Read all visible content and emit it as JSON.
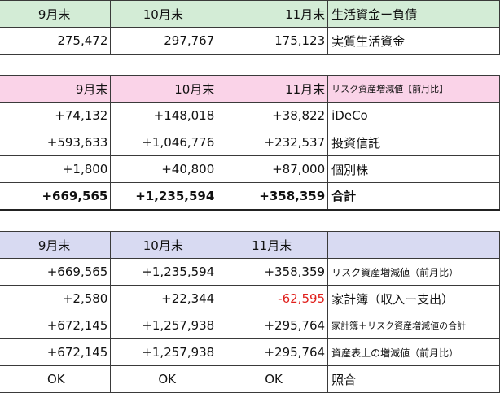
{
  "table1": {
    "header": [
      "9月末",
      "10月末",
      "11月末",
      "生活資金ー負債"
    ],
    "row": [
      "275,472",
      "297,767",
      "175,123",
      "実質生活資金"
    ]
  },
  "table2": {
    "header": [
      "9月末",
      "10月末",
      "11月末",
      "リスク資産増減値【前月比】"
    ],
    "rows": [
      [
        "+74,132",
        "+148,018",
        "+38,822",
        "iDeCo"
      ],
      [
        "+593,633",
        "+1,046,776",
        "+232,537",
        "投資信託"
      ],
      [
        "+1,800",
        "+40,800",
        "+87,000",
        "個別株"
      ],
      [
        "+669,565",
        "+1,235,594",
        "+358,359",
        "合計"
      ]
    ]
  },
  "table3": {
    "header": [
      "9月末",
      "10月末",
      "11月末",
      ""
    ],
    "rows": [
      [
        "+669,565",
        "+1,235,594",
        "+358,359",
        "リスク資産増減値（前月比）"
      ],
      [
        "+2,580",
        "+22,344",
        "-62,595",
        "家計簿（収入ー支出）"
      ],
      [
        "+672,145",
        "+1,257,938",
        "+295,764",
        "家計簿＋リスク資産増減値の合計"
      ],
      [
        "+672,145",
        "+1,257,938",
        "+295,764",
        "資産表上の増減値（前月比）"
      ],
      [
        "OK",
        "OK",
        "OK",
        "照合"
      ]
    ]
  },
  "colors": {
    "green_header": "#d3ecd6",
    "pink_header": "#fad3e8",
    "lavender_header": "#d8daf2",
    "negative": "#e0201c"
  }
}
